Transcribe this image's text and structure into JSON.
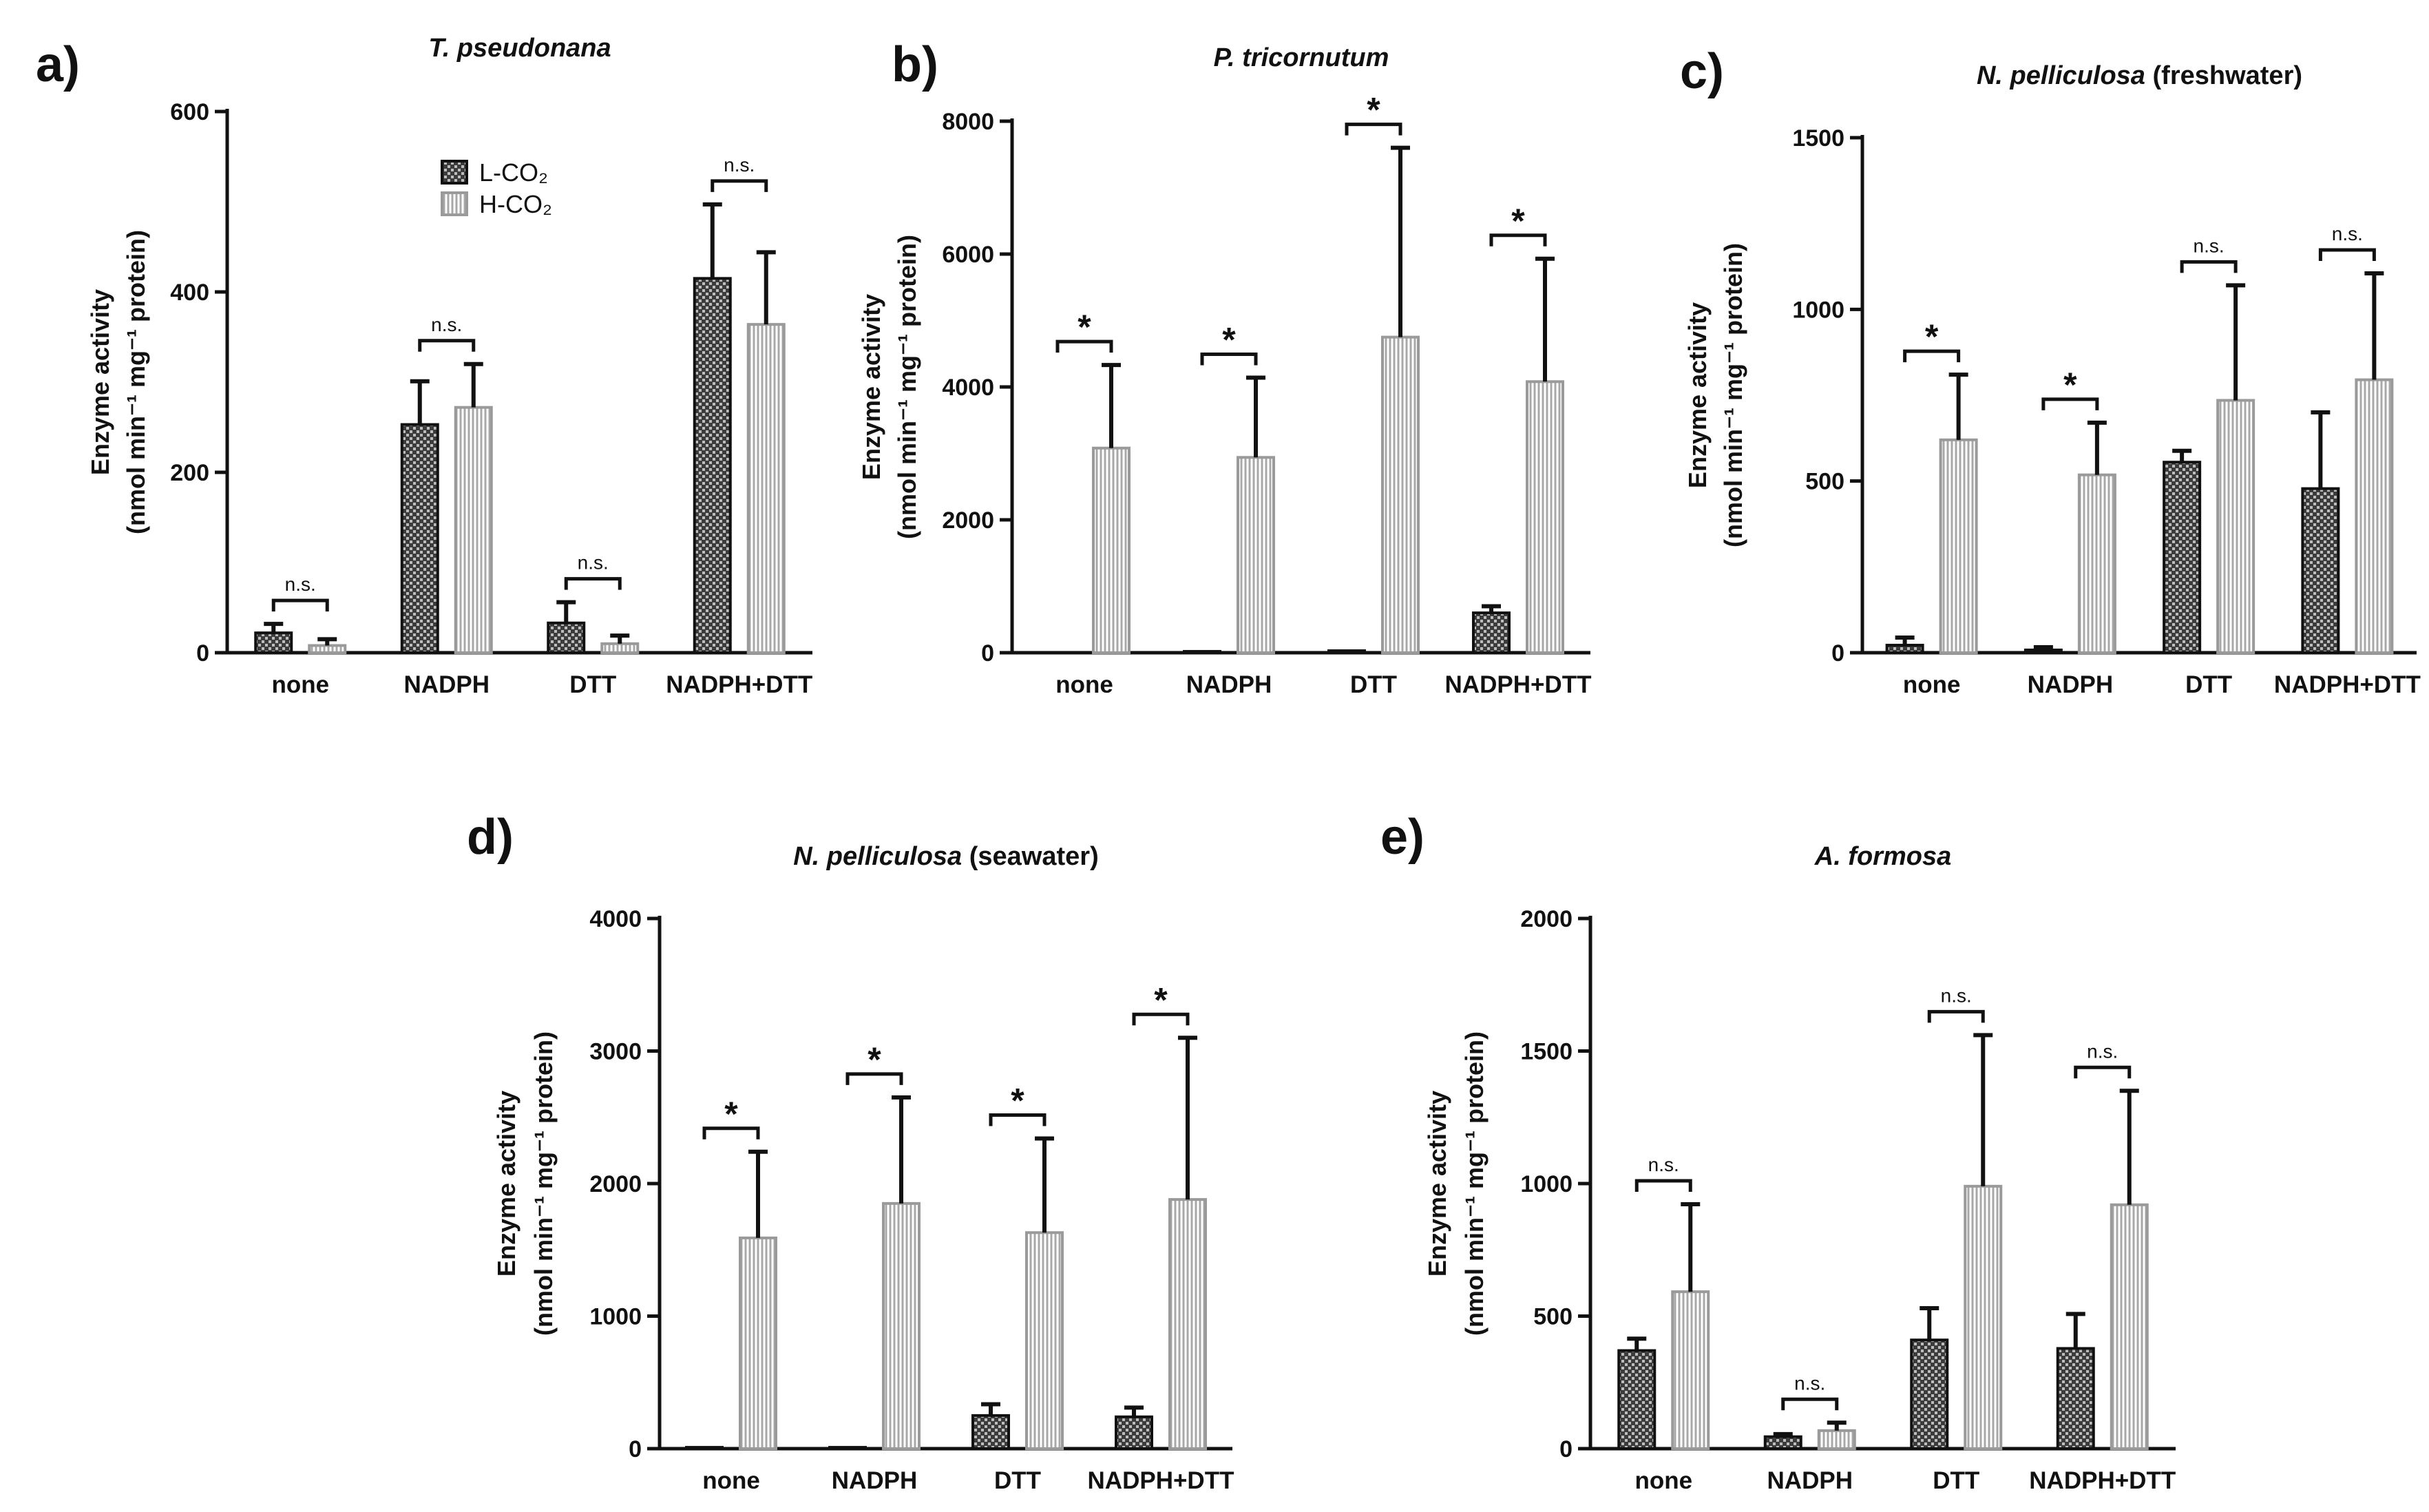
{
  "chart_data": [
    {
      "type": "bar",
      "panel": "a)",
      "title": "T. pseudonana",
      "title_suffix": "",
      "categories": [
        "none",
        "NADPH",
        "DTT",
        "NADPH+DTT"
      ],
      "ylim": [
        0,
        600
      ],
      "yticks": [
        0,
        200,
        400,
        600
      ],
      "ylabel_line1": "Enzyme activity",
      "ylabel_line2": "(nmol min⁻¹ mg⁻¹ protein)",
      "series": [
        {
          "name": "L-CO₂",
          "values": [
            22,
            253,
            33,
            415
          ],
          "errors": [
            10,
            48,
            23,
            82
          ]
        },
        {
          "name": "H-CO₂",
          "values": [
            8,
            272,
            10,
            364
          ],
          "errors": [
            7,
            48,
            9,
            80
          ]
        }
      ],
      "significance": [
        "n.s.",
        "n.s.",
        "n.s.",
        "n.s."
      ],
      "legend": {
        "show": true,
        "position": "top-left",
        "labels": [
          "L-CO₂",
          "H-CO₂"
        ]
      }
    },
    {
      "type": "bar",
      "panel": "b)",
      "title": "P. tricornutum",
      "title_suffix": "",
      "categories": [
        "none",
        "NADPH",
        "DTT",
        "NADPH+DTT"
      ],
      "ylim": [
        0,
        8000
      ],
      "yticks": [
        0,
        2000,
        4000,
        6000,
        8000
      ],
      "ylabel_line1": "Enzyme activity",
      "ylabel_line2": "(nmol min⁻¹ mg⁻¹ protein)",
      "series": [
        {
          "name": "L-CO₂",
          "values": [
            0,
            20,
            30,
            600
          ],
          "errors": [
            0,
            0,
            0,
            100
          ]
        },
        {
          "name": "H-CO₂",
          "values": [
            3080,
            2940,
            4750,
            4080
          ],
          "errors": [
            1250,
            1200,
            2850,
            1850
          ]
        }
      ],
      "significance": [
        "*",
        "*",
        "*",
        "*"
      ],
      "legend": {
        "show": false
      }
    },
    {
      "type": "bar",
      "panel": "c)",
      "title": "N. pelliculosa",
      "title_suffix": " (freshwater)",
      "categories": [
        "none",
        "NADPH",
        "DTT",
        "NADPH+DTT"
      ],
      "ylim": [
        0,
        1500
      ],
      "yticks": [
        0,
        500,
        1000,
        1500
      ],
      "ylabel_line1": "Enzyme activity",
      "ylabel_line2": "(nmol min⁻¹ mg⁻¹ protein)",
      "series": [
        {
          "name": "L-CO₂",
          "values": [
            22,
            8,
            555,
            478
          ],
          "errors": [
            22,
            8,
            33,
            222
          ]
        },
        {
          "name": "H-CO₂",
          "values": [
            620,
            518,
            735,
            795
          ],
          "errors": [
            190,
            152,
            335,
            310
          ]
        }
      ],
      "significance": [
        "*",
        "*",
        "n.s.",
        "n.s."
      ],
      "legend": {
        "show": false
      }
    },
    {
      "type": "bar",
      "panel": "d)",
      "title": "N. pelliculosa",
      "title_suffix": " (seawater)",
      "categories": [
        "none",
        "NADPH",
        "DTT",
        "NADPH+DTT"
      ],
      "ylim": [
        0,
        4000
      ],
      "yticks": [
        0,
        1000,
        2000,
        3000,
        4000
      ],
      "ylabel_line1": "Enzyme activity",
      "ylabel_line2": "(nmol min⁻¹ mg⁻¹ protein)",
      "series": [
        {
          "name": "L-CO₂",
          "values": [
            10,
            10,
            250,
            240
          ],
          "errors": [
            0,
            0,
            85,
            70
          ]
        },
        {
          "name": "H-CO₂",
          "values": [
            1590,
            1850,
            1630,
            1880
          ],
          "errors": [
            650,
            800,
            710,
            1220
          ]
        }
      ],
      "significance": [
        "*",
        "*",
        "*",
        "*"
      ],
      "legend": {
        "show": false
      }
    },
    {
      "type": "bar",
      "panel": "e)",
      "title": "A. formosa",
      "title_suffix": "",
      "categories": [
        "none",
        "NADPH",
        "DTT",
        "NADPH+DTT"
      ],
      "ylim": [
        0,
        2000
      ],
      "yticks": [
        0,
        500,
        1000,
        1500,
        2000
      ],
      "ylabel_line1": "Enzyme activity",
      "ylabel_line2": "(nmol min⁻¹ mg⁻¹ protein)",
      "series": [
        {
          "name": "L-CO₂",
          "values": [
            370,
            45,
            410,
            378
          ],
          "errors": [
            45,
            10,
            120,
            130
          ]
        },
        {
          "name": "H-CO₂",
          "values": [
            592,
            68,
            990,
            920
          ],
          "errors": [
            330,
            30,
            570,
            430
          ]
        }
      ],
      "significance": [
        "n.s.",
        "n.s.",
        "n.s.",
        "n.s."
      ],
      "legend": {
        "show": false
      }
    }
  ]
}
